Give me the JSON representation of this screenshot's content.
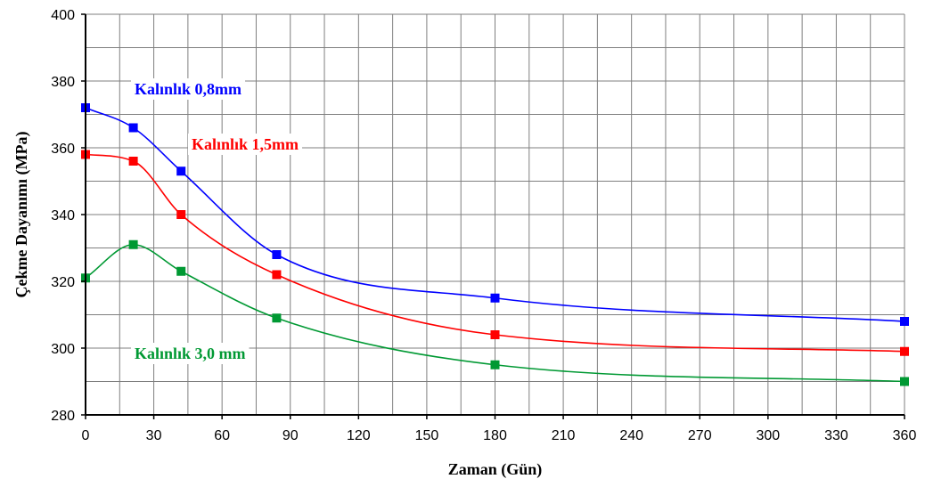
{
  "chart_data": {
    "type": "line",
    "title": "",
    "xlabel": "Zaman (Gün)",
    "ylabel": "Çekme Dayanımı (MPa)",
    "xlim": [
      0,
      360
    ],
    "ylim": [
      280,
      400
    ],
    "x_ticks": [
      "0",
      "30",
      "60",
      "90",
      "120",
      "150",
      "180",
      "210",
      "240",
      "270",
      "300",
      "330",
      "360"
    ],
    "y_ticks": [
      "280",
      "300",
      "320",
      "340",
      "360",
      "380",
      "400"
    ],
    "grid": true,
    "legend": "none",
    "series": [
      {
        "name": "Kalınlık 0,8mm",
        "color": "#0000ff",
        "marker": "square",
        "x": [
          0,
          21,
          42,
          84,
          180,
          360
        ],
        "y": [
          372,
          366,
          353,
          328,
          315,
          308
        ]
      },
      {
        "name": "Kalınlık 1,5mm",
        "color": "#ff0000",
        "marker": "square",
        "x": [
          0,
          21,
          42,
          84,
          180,
          360
        ],
        "y": [
          358,
          356,
          340,
          322,
          304,
          299
        ]
      },
      {
        "name": "Kalınlık 3,0 mm",
        "color": "#009933",
        "marker": "square",
        "x": [
          0,
          21,
          42,
          84,
          180,
          360
        ],
        "y": [
          321,
          331,
          323,
          309,
          295,
          290
        ]
      }
    ]
  }
}
